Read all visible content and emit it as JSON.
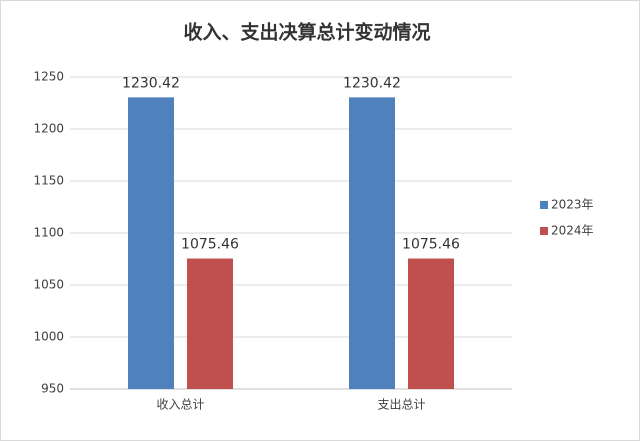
{
  "chart_data": {
    "type": "bar",
    "title": "收入、支出决算总计变动情况",
    "categories": [
      "收入总计",
      "支出总计"
    ],
    "series": [
      {
        "name": "2023年",
        "color": "#4f81bd",
        "values": [
          1230.42,
          1230.42
        ]
      },
      {
        "name": "2024年",
        "color": "#c0504d",
        "values": [
          1075.46,
          1075.46
        ]
      }
    ],
    "ylim": [
      950,
      1250
    ],
    "yticks": [
      950,
      1000,
      1050,
      1100,
      1150,
      1200,
      1250
    ],
    "grid": true,
    "legend": "right"
  }
}
